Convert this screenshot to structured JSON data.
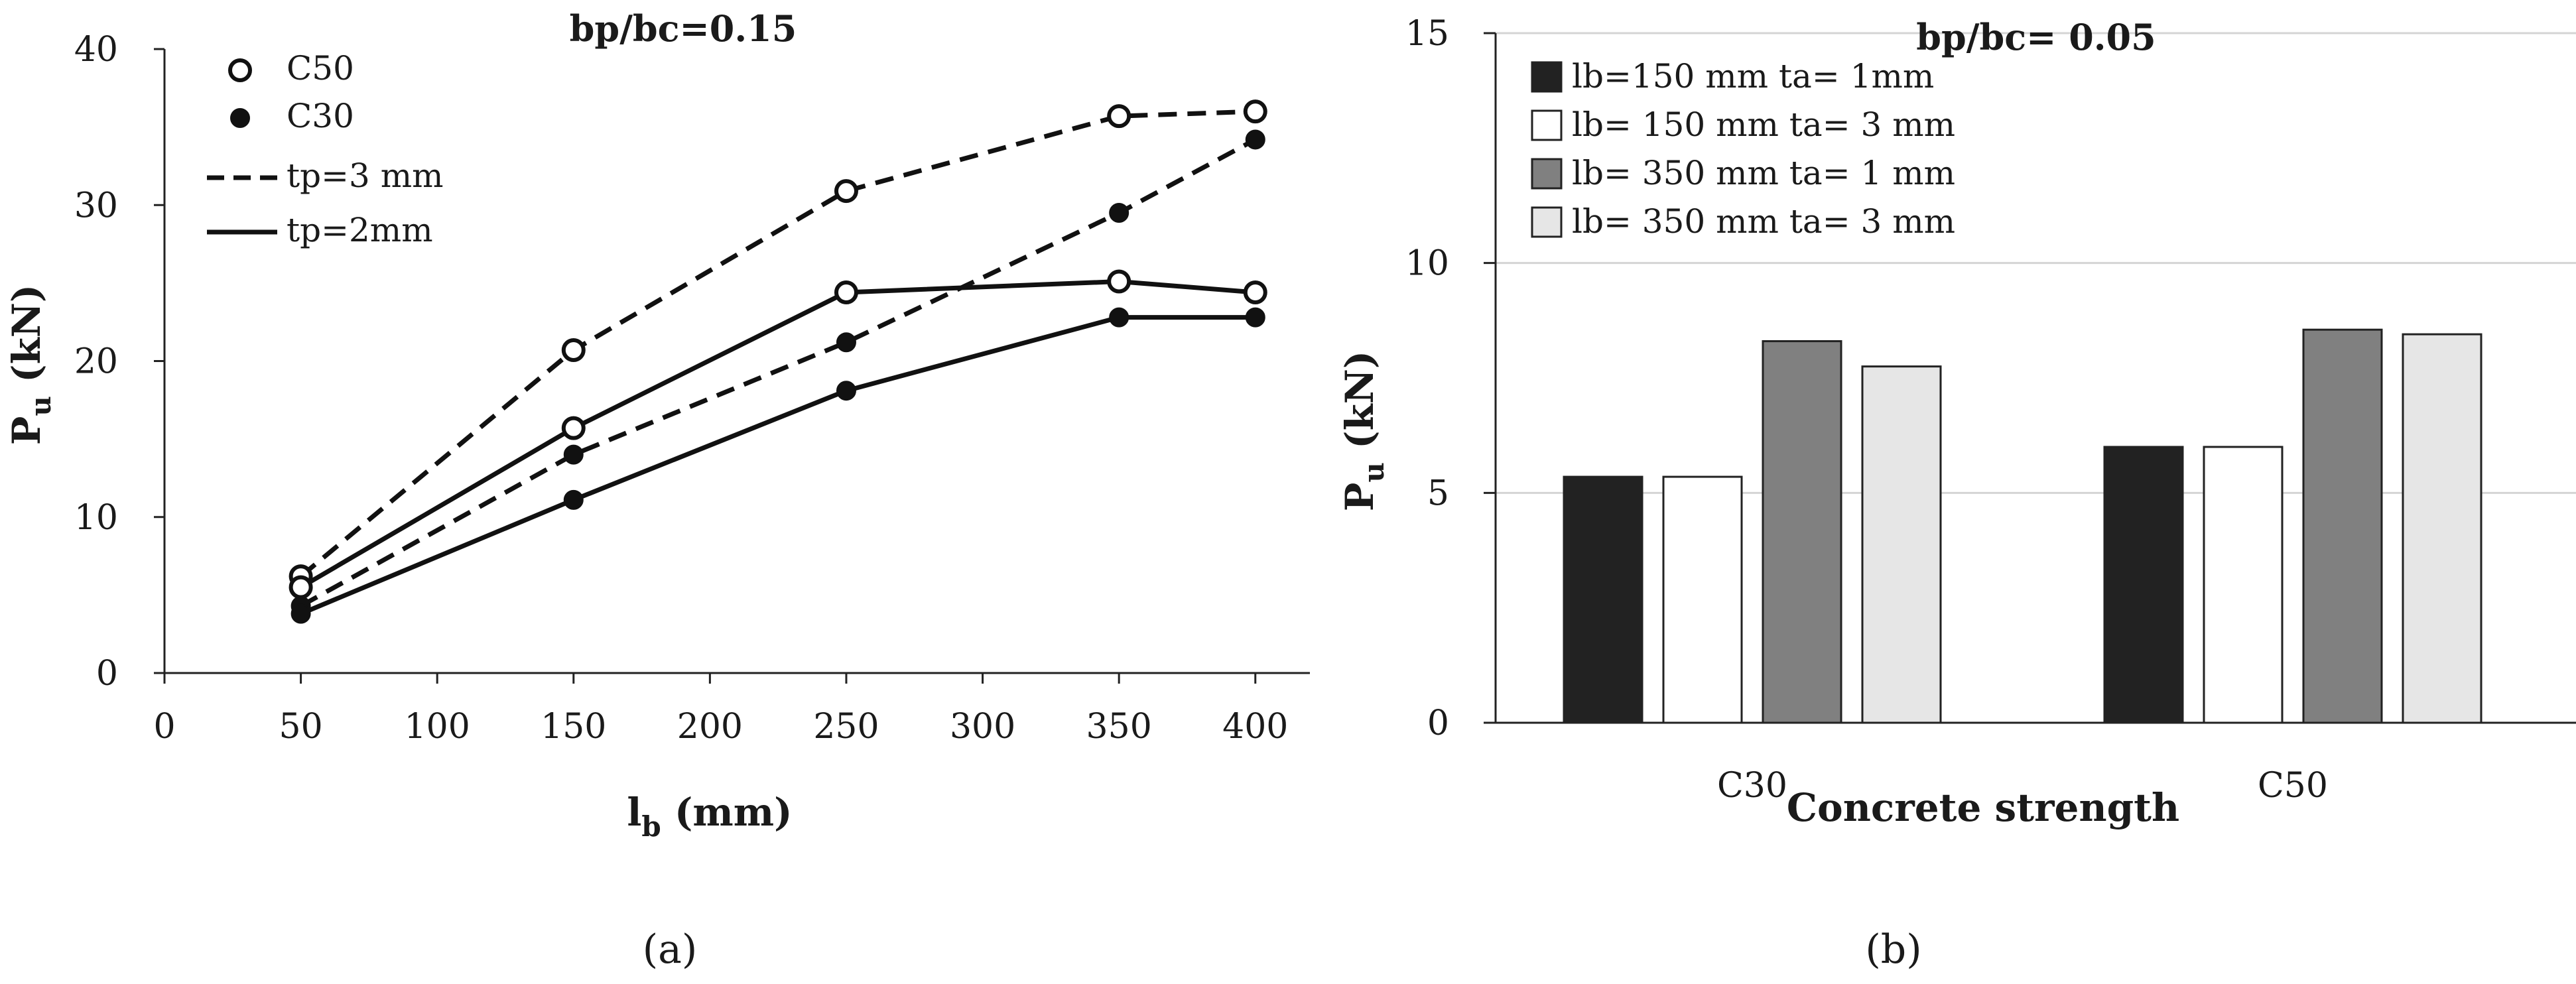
{
  "chart_data": [
    {
      "type": "line",
      "panel": "(a)",
      "title": "bp/bc=0.15",
      "xlabel": "lb (mm)",
      "xlabel_main": "l",
      "xlabel_sub": "b",
      "xlabel_rest": " (mm)",
      "ylabel": "Pu (kN)",
      "ylabel_main": "P",
      "ylabel_sub": "u",
      "ylabel_rest": " (kN)",
      "xlim": [
        0,
        420
      ],
      "ylim": [
        0,
        40
      ],
      "xticks": [
        0,
        50,
        100,
        150,
        200,
        250,
        300,
        350,
        400
      ],
      "yticks": [
        0,
        10,
        20,
        30,
        40
      ],
      "grid": false,
      "legend": {
        "position": "top-left",
        "entries": [
          {
            "label": "C50",
            "marker": "open-circle"
          },
          {
            "label": "C30",
            "marker": "filled-circle"
          },
          {
            "label": "tp=3 mm",
            "line": "dashed"
          },
          {
            "label": "tp=2mm",
            "line": "solid"
          }
        ]
      },
      "x": [
        50,
        150,
        250,
        350,
        400
      ],
      "series": [
        {
          "name": "C50 tp=3 mm",
          "concrete": "C50",
          "tp": "3 mm",
          "marker": "open",
          "dash": true,
          "values": [
            6.2,
            20.7,
            30.9,
            35.7,
            36.0
          ]
        },
        {
          "name": "C50 tp=2mm",
          "concrete": "C50",
          "tp": "2mm",
          "marker": "open",
          "dash": false,
          "values": [
            5.5,
            15.7,
            24.4,
            25.1,
            24.4
          ]
        },
        {
          "name": "C30 tp=3 mm",
          "concrete": "C30",
          "tp": "3 mm",
          "marker": "filled",
          "dash": true,
          "values": [
            4.3,
            14.0,
            21.2,
            29.5,
            34.2
          ]
        },
        {
          "name": "C30 tp=2mm",
          "concrete": "C30",
          "tp": "2mm",
          "marker": "filled",
          "dash": false,
          "values": [
            3.8,
            11.1,
            18.1,
            22.8,
            22.8
          ]
        }
      ]
    },
    {
      "type": "bar",
      "panel": "(b)",
      "title": "bp/bc= 0.05",
      "xlabel": "Concrete strength",
      "ylabel": "Pu (kN)",
      "ylabel_main": "P",
      "ylabel_sub": "u",
      "ylabel_rest": " (kN)",
      "ylim": [
        0,
        15
      ],
      "yticks": [
        0,
        5,
        10,
        15
      ],
      "grid": true,
      "legend": {
        "position": "top-left",
        "entries": [
          {
            "label": "lb=150 mm ta= 1mm",
            "color": "#222222"
          },
          {
            "label": "lb= 150 mm ta= 3 mm",
            "color": "#ffffff"
          },
          {
            "label": "lb= 350 mm ta= 1 mm",
            "color": "#808080"
          },
          {
            "label": "lb= 350 mm ta= 3 mm",
            "color": "#e6e6e6"
          }
        ]
      },
      "categories": [
        "C30",
        "C50"
      ],
      "series": [
        {
          "name": "lb=150 mm ta= 1mm",
          "color": "#222222",
          "values": [
            5.35,
            6.0
          ]
        },
        {
          "name": "lb= 150 mm ta= 3 mm",
          "color": "#ffffff",
          "values": [
            5.35,
            6.0
          ]
        },
        {
          "name": "lb= 350 mm ta= 1 mm",
          "color": "#808080",
          "values": [
            8.3,
            8.55
          ]
        },
        {
          "name": "lb= 350 mm ta= 3 mm",
          "color": "#e6e6e6",
          "values": [
            7.75,
            8.45
          ]
        }
      ]
    }
  ]
}
